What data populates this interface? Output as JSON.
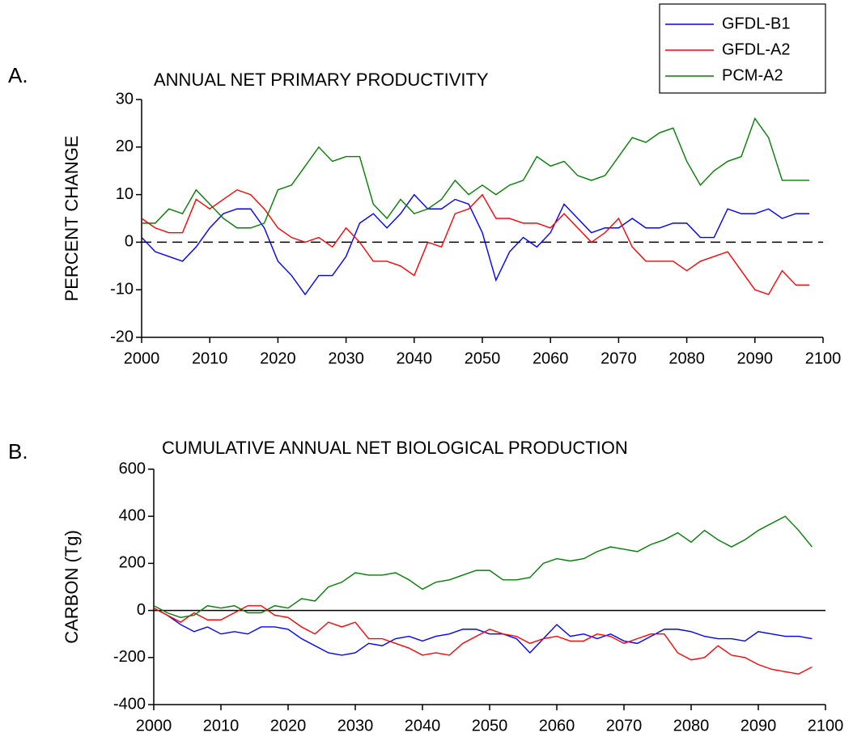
{
  "chart_data": [
    {
      "type": "line",
      "panel_label": "A.",
      "title": "ANNUAL NET PRIMARY PRODUCTIVITY",
      "y_label": "PERCENT CHANGE",
      "x": [
        2000,
        2002,
        2004,
        2006,
        2008,
        2010,
        2012,
        2014,
        2016,
        2018,
        2020,
        2022,
        2024,
        2026,
        2028,
        2030,
        2032,
        2034,
        2036,
        2038,
        2040,
        2042,
        2044,
        2046,
        2048,
        2050,
        2052,
        2054,
        2056,
        2058,
        2060,
        2062,
        2064,
        2066,
        2068,
        2070,
        2072,
        2074,
        2076,
        2078,
        2080,
        2082,
        2084,
        2086,
        2088,
        2090,
        2092,
        2094,
        2096,
        2098
      ],
      "series": [
        {
          "name": "GFDL-B1",
          "color": "#0000ff",
          "values": [
            1,
            -2,
            -3,
            -4,
            -1,
            3,
            6,
            7,
            7,
            3,
            -4,
            -7,
            -11,
            -7,
            -7,
            -3,
            4,
            6,
            3,
            6,
            10,
            7,
            7,
            9,
            8,
            2,
            -8,
            -2,
            1,
            -1,
            2,
            8,
            5,
            2,
            3,
            3,
            5,
            3,
            3,
            4,
            4,
            1,
            1,
            7,
            6,
            6,
            7,
            5,
            6,
            6
          ]
        },
        {
          "name": "GFDL-A2",
          "color": "#ff0000",
          "values": [
            5,
            3,
            2,
            2,
            9,
            7,
            9,
            11,
            10,
            7,
            3,
            1,
            0,
            1,
            -1,
            3,
            0,
            -4,
            -4,
            -5,
            -7,
            0,
            -1,
            6,
            7,
            10,
            5,
            5,
            4,
            4,
            3,
            6,
            3,
            0,
            2,
            5,
            -1,
            -4,
            -4,
            -4,
            -6,
            -4,
            -3,
            -2,
            -6,
            -10,
            -11,
            -6,
            -9,
            -9
          ]
        },
        {
          "name": "PCM-A2",
          "color": "#008000",
          "values": [
            4,
            4,
            7,
            6,
            11,
            8,
            5,
            3,
            3,
            4,
            11,
            12,
            16,
            20,
            17,
            18,
            18,
            8,
            5,
            9,
            6,
            7,
            9,
            13,
            10,
            12,
            10,
            12,
            13,
            18,
            16,
            17,
            14,
            13,
            14,
            18,
            22,
            21,
            23,
            24,
            17,
            12,
            15,
            17,
            18,
            26,
            22,
            13,
            13,
            13
          ]
        }
      ],
      "xlim": [
        2000,
        2100
      ],
      "xticks": [
        2000,
        2010,
        2020,
        2030,
        2040,
        2050,
        2060,
        2070,
        2080,
        2090,
        2100
      ],
      "ylim": [
        -20,
        30
      ],
      "yticks": [
        -20,
        -10,
        0,
        10,
        20,
        30
      ],
      "zero_line": {
        "value": 0,
        "style": "dashed"
      },
      "legend": "top-right"
    },
    {
      "type": "line",
      "panel_label": "B.",
      "title": "CUMULATIVE ANNUAL NET BIOLOGICAL PRODUCTION",
      "y_label": "CARBON (Tg)",
      "x": [
        2000,
        2002,
        2004,
        2006,
        2008,
        2010,
        2012,
        2014,
        2016,
        2018,
        2020,
        2022,
        2024,
        2026,
        2028,
        2030,
        2032,
        2034,
        2036,
        2038,
        2040,
        2042,
        2044,
        2046,
        2048,
        2050,
        2052,
        2054,
        2056,
        2058,
        2060,
        2062,
        2064,
        2066,
        2068,
        2070,
        2072,
        2074,
        2076,
        2078,
        2080,
        2082,
        2084,
        2086,
        2088,
        2090,
        2092,
        2094,
        2096,
        2098
      ],
      "series": [
        {
          "color": "#0000ff",
          "values": [
            10,
            -20,
            -60,
            -90,
            -70,
            -100,
            -90,
            -100,
            -70,
            -70,
            -80,
            -120,
            -150,
            -180,
            -190,
            -180,
            -140,
            -150,
            -120,
            -110,
            -130,
            -110,
            -100,
            -80,
            -80,
            -100,
            -100,
            -120,
            -180,
            -120,
            -60,
            -110,
            -100,
            -120,
            -100,
            -130,
            -140,
            -110,
            -80,
            -80,
            -90,
            -110,
            -120,
            -120,
            -130,
            -90,
            -100,
            -110,
            -110,
            -120
          ]
        },
        {
          "color": "#ff0000",
          "values": [
            10,
            -20,
            -50,
            -10,
            -40,
            -40,
            -10,
            20,
            20,
            -20,
            -30,
            -70,
            -100,
            -50,
            -70,
            -50,
            -120,
            -120,
            -140,
            -160,
            -190,
            -180,
            -190,
            -140,
            -110,
            -80,
            -100,
            -110,
            -140,
            -120,
            -110,
            -130,
            -130,
            -100,
            -110,
            -140,
            -120,
            -100,
            -100,
            -180,
            -210,
            -200,
            -150,
            -190,
            -200,
            -230,
            -250,
            -260,
            -270,
            -240
          ]
        },
        {
          "color": "#008000",
          "values": [
            20,
            -10,
            -30,
            -20,
            20,
            10,
            20,
            -10,
            -10,
            20,
            10,
            50,
            40,
            100,
            120,
            160,
            150,
            150,
            160,
            130,
            90,
            120,
            130,
            150,
            170,
            170,
            130,
            130,
            140,
            200,
            220,
            210,
            220,
            250,
            270,
            260,
            250,
            280,
            300,
            330,
            290,
            340,
            300,
            270,
            300,
            340,
            370,
            400,
            340,
            270
          ]
        }
      ],
      "xlim": [
        2000,
        2100
      ],
      "xticks": [
        2000,
        2010,
        2020,
        2030,
        2040,
        2050,
        2060,
        2070,
        2080,
        2090,
        2100
      ],
      "ylim": [
        -400,
        600
      ],
      "yticks": [
        -400,
        -200,
        0,
        200,
        400,
        600
      ],
      "zero_line": {
        "value": 0,
        "style": "solid"
      }
    }
  ]
}
